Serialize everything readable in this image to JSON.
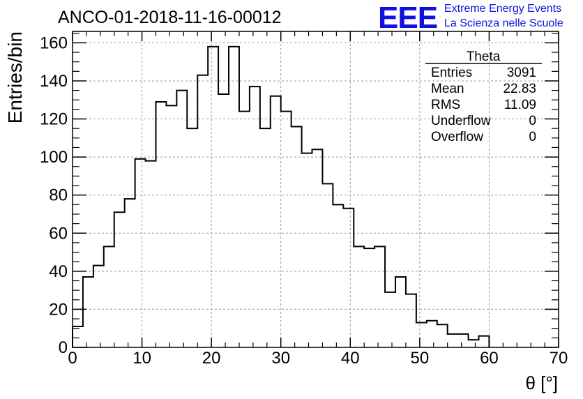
{
  "chart_data": {
    "type": "bar",
    "title": "ANCO-01-2018-11-16-00012",
    "xlabel": "θ [°]",
    "ylabel": "Entries/bin",
    "xlim": [
      0,
      70
    ],
    "ylim": [
      0,
      166
    ],
    "grid": true,
    "xticks": [
      "0",
      "10",
      "20",
      "30",
      "40",
      "50",
      "60",
      "70"
    ],
    "yticks": [
      "0",
      "20",
      "40",
      "60",
      "80",
      "100",
      "120",
      "140",
      "160"
    ],
    "bin_width": 1.5,
    "bins_start": 0,
    "values": [
      11,
      37,
      43,
      53,
      71,
      78,
      99,
      98,
      129,
      127,
      135,
      115,
      143,
      158,
      133,
      158,
      124,
      137,
      115,
      132,
      124,
      116,
      102,
      104,
      86,
      75,
      73,
      53,
      52,
      53,
      29,
      37,
      28,
      13,
      14,
      12,
      7,
      7,
      4,
      6
    ]
  },
  "stats_box": {
    "title": "Theta",
    "rows": [
      {
        "label": "Entries",
        "value": "3091"
      },
      {
        "label": "Mean",
        "value": "22.83"
      },
      {
        "label": "RMS",
        "value": "11.09"
      },
      {
        "label": "Underflow",
        "value": "0"
      },
      {
        "label": "Overflow",
        "value": "0"
      }
    ]
  },
  "logo": {
    "mark": "EEE",
    "line1": "Extreme Energy Events",
    "line2": "La Scienza nelle Scuole",
    "color": "#1010e0"
  }
}
